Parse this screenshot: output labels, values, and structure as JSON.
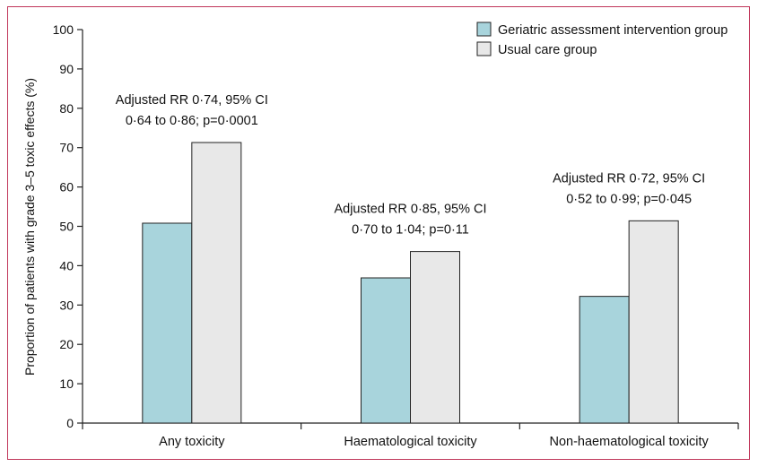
{
  "chart_data": {
    "type": "bar",
    "categories": [
      "Any toxicity",
      "Haematological toxicity",
      "Non-haematological toxicity"
    ],
    "series": [
      {
        "name": "Geriatric assessment intervention group",
        "values": [
          50.8,
          36.9,
          32.2
        ],
        "color": "#a8d4dc"
      },
      {
        "name": "Usual care group",
        "values": [
          71.3,
          43.6,
          51.4
        ],
        "color": "#e8e8e8"
      }
    ],
    "ylabel": "Proportion of patients with grade 3–5 toxic effects (%)",
    "xlabel": "",
    "ylim": [
      0,
      100
    ],
    "yticks": [
      "0",
      "10",
      "20",
      "30",
      "40",
      "50",
      "60",
      "70",
      "80",
      "90",
      "100"
    ],
    "annotations": [
      {
        "line1": "Adjusted RR 0·74, 95% CI",
        "line2": "0·64 to 0·86; p=0·0001"
      },
      {
        "line1": "Adjusted RR 0·85, 95% CI",
        "line2": "0·70 to 1·04; p=0·11"
      },
      {
        "line1": "Adjusted RR 0·72, 95% CI",
        "line2": "0·52 to 0·99; p=0·045"
      }
    ],
    "legend_position": "top-right",
    "grid": false,
    "frame_color": "#c0365a"
  }
}
